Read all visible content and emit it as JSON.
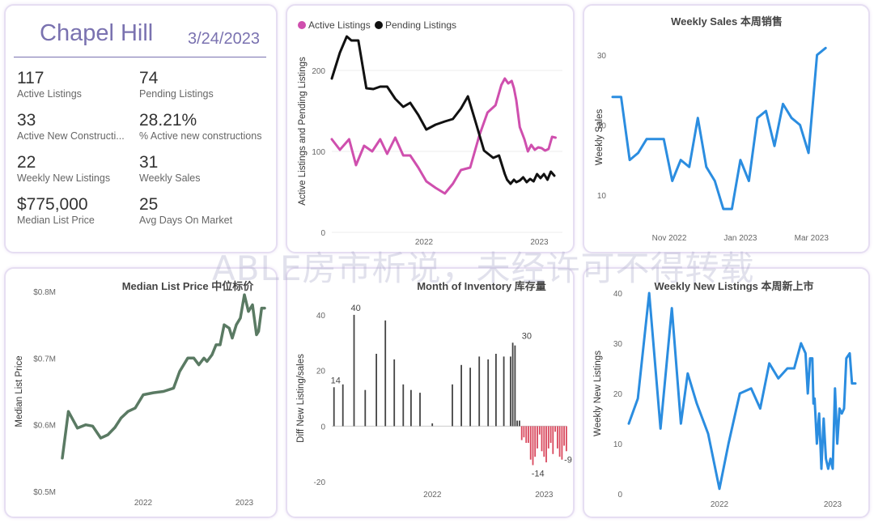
{
  "kpi": {
    "city": "Chapel Hill",
    "date": "3/24/2023",
    "items": [
      {
        "value": "117",
        "label": "Active Listings"
      },
      {
        "value": "74",
        "label": "Pending Listings"
      },
      {
        "value": "33",
        "label": "Active New Constructi..."
      },
      {
        "value": "28.21%",
        "label": "% Active new constructions"
      },
      {
        "value": "22",
        "label": "Weekly New Listings"
      },
      {
        "value": "31",
        "label": "Weekly Sales"
      },
      {
        "value": "$775,000",
        "label": "Median List Price"
      },
      {
        "value": "25",
        "label": "Avg Days On Market"
      }
    ]
  },
  "watermark": "ABLE房市析说，未经许可不得转载",
  "colors": {
    "active": "#cf4fae",
    "pending": "#111111",
    "blue": "#2b8de0",
    "green": "#5a7a63",
    "pos": "#444444",
    "neg": "#d9495e"
  },
  "chart_data": [
    {
      "id": "listings",
      "type": "line",
      "title": "",
      "legend": [
        "Active Listings",
        "Pending Listings"
      ],
      "ylabel": "Active Listings and Pending Listings",
      "ylim": [
        0,
        250
      ],
      "yticks": [
        0,
        100,
        200
      ],
      "xlim": [
        2021.2,
        2023.2
      ],
      "xticks": [
        {
          "v": 2022.0,
          "label": "2022"
        },
        {
          "v": 2023.0,
          "label": "2023"
        }
      ],
      "series": [
        {
          "name": "Active Listings",
          "x": [
            2021.2,
            2021.27,
            2021.35,
            2021.41,
            2021.48,
            2021.55,
            2021.62,
            2021.68,
            2021.75,
            2021.82,
            2021.88,
            2021.95,
            2022.02,
            2022.1,
            2022.18,
            2022.25,
            2022.32,
            2022.4,
            2022.48,
            2022.55,
            2022.62,
            2022.67,
            2022.7,
            2022.73,
            2022.76,
            2022.78,
            2022.8,
            2022.83,
            2022.87,
            2022.9,
            2022.93,
            2022.96,
            2022.99,
            2023.02,
            2023.05,
            2023.08,
            2023.11,
            2023.14
          ],
          "values": [
            115,
            102,
            115,
            83,
            107,
            100,
            115,
            97,
            117,
            95,
            95,
            80,
            63,
            55,
            48,
            60,
            77,
            80,
            120,
            148,
            157,
            182,
            190,
            184,
            187,
            178,
            163,
            130,
            115,
            100,
            108,
            102,
            105,
            104,
            101,
            103,
            118,
            117
          ]
        },
        {
          "name": "Pending Listings",
          "x": [
            2021.2,
            2021.27,
            2021.33,
            2021.37,
            2021.43,
            2021.5,
            2021.56,
            2021.62,
            2021.68,
            2021.75,
            2021.82,
            2021.88,
            2021.95,
            2022.02,
            2022.1,
            2022.18,
            2022.25,
            2022.32,
            2022.38,
            2022.45,
            2022.52,
            2022.6,
            2022.65,
            2022.7,
            2022.72,
            2022.75,
            2022.78,
            2022.8,
            2022.83,
            2022.86,
            2022.89,
            2022.92,
            2022.95,
            2022.98,
            2023.01,
            2023.04,
            2023.07,
            2023.1,
            2023.13
          ],
          "values": [
            190,
            222,
            242,
            237,
            237,
            178,
            177,
            180,
            180,
            165,
            155,
            160,
            145,
            127,
            133,
            137,
            140,
            153,
            168,
            135,
            101,
            92,
            95,
            72,
            65,
            60,
            65,
            62,
            64,
            68,
            62,
            66,
            63,
            72,
            67,
            72,
            65,
            75,
            70
          ]
        }
      ]
    },
    {
      "id": "weekly-sales",
      "type": "line",
      "title": "Weekly Sales 本周销售",
      "ylabel": "Weekly Sales",
      "ylim": [
        3.5,
        33
      ],
      "yticks": [
        10,
        20,
        30
      ],
      "xlim": [
        2022.7,
        2023.27
      ],
      "xticks": [
        {
          "v": 2022.833,
          "label": "Nov 2022"
        },
        {
          "v": 2023.0,
          "label": "Jan 2023"
        },
        {
          "v": 2023.167,
          "label": "Mar 2023"
        }
      ],
      "series": [
        {
          "name": "Weekly Sales",
          "x": [
            2022.7,
            2022.72,
            2022.74,
            2022.76,
            2022.78,
            2022.8,
            2022.82,
            2022.84,
            2022.86,
            2022.88,
            2022.9,
            2022.92,
            2022.94,
            2022.96,
            2022.98,
            2023.0,
            2023.02,
            2023.04,
            2023.06,
            2023.08,
            2023.1,
            2023.12,
            2023.14,
            2023.16,
            2023.18,
            2023.2,
            2023.22,
            2023.24,
            2023.26
          ],
          "values": [
            24,
            24,
            15,
            16,
            18,
            18,
            18,
            12,
            15,
            14,
            21,
            14,
            12,
            8,
            8,
            15,
            12,
            21,
            22,
            17,
            23,
            21,
            20,
            16,
            30,
            31,
            null,
            null,
            null
          ]
        }
      ]
    },
    {
      "id": "median-price",
      "type": "line",
      "title": "Median List Price  中位标价",
      "ylabel": "Median List Price",
      "ylim": [
        0.5,
        0.8
      ],
      "yticks": [
        {
          "v": 0.5,
          "label": "$0.5M"
        },
        {
          "v": 0.6,
          "label": "$0.6M"
        },
        {
          "v": 0.7,
          "label": "$0.7M"
        },
        {
          "v": 0.8,
          "label": "$0.8M"
        }
      ],
      "xlim": [
        2021.2,
        2023.2
      ],
      "xticks": [
        {
          "v": 2022.0,
          "label": "2022"
        },
        {
          "v": 2023.0,
          "label": "2023"
        }
      ],
      "series": [
        {
          "name": "Median List Price",
          "x": [
            2021.2,
            2021.26,
            2021.35,
            2021.43,
            2021.5,
            2021.58,
            2021.65,
            2021.72,
            2021.78,
            2021.85,
            2021.92,
            2022.0,
            2022.1,
            2022.2,
            2022.3,
            2022.36,
            2022.44,
            2022.5,
            2022.55,
            2022.6,
            2022.63,
            2022.68,
            2022.72,
            2022.76,
            2022.8,
            2022.85,
            2022.88,
            2022.92,
            2022.96,
            2023.0,
            2023.04,
            2023.08,
            2023.12,
            2023.14,
            2023.17,
            2023.2
          ],
          "values": [
            0.55,
            0.62,
            0.595,
            0.6,
            0.598,
            0.58,
            0.585,
            0.596,
            0.61,
            0.62,
            0.625,
            0.645,
            0.648,
            0.65,
            0.655,
            0.68,
            0.7,
            0.7,
            0.69,
            0.7,
            0.695,
            0.705,
            0.72,
            0.72,
            0.75,
            0.745,
            0.73,
            0.75,
            0.76,
            0.795,
            0.77,
            0.78,
            0.735,
            0.74,
            0.775,
            0.775
          ]
        }
      ]
    },
    {
      "id": "months-inventory",
      "type": "bar",
      "title": "Month of Inventory 库存量",
      "ylabel": "Diff New Listing/sales",
      "ylim": [
        -22,
        42
      ],
      "yticks": [
        -20,
        0,
        20,
        40
      ],
      "xlim": [
        2021.1,
        2023.2
      ],
      "xticks": [
        {
          "v": 2022.0,
          "label": "2022"
        },
        {
          "v": 2023.0,
          "label": "2023"
        }
      ],
      "data_labels": [
        {
          "x": 2021.12,
          "value": 14,
          "label": "14"
        },
        {
          "x": 2021.3,
          "value": 40,
          "label": "40"
        },
        {
          "x": 2022.83,
          "value": 30,
          "label": "30"
        },
        {
          "x": 2022.93,
          "value": -14,
          "label": "-14"
        },
        {
          "x": 2023.2,
          "value": -9,
          "label": "-9"
        }
      ],
      "bars": {
        "x": [
          2021.12,
          2021.2,
          2021.3,
          2021.4,
          2021.5,
          2021.58,
          2021.66,
          2021.74,
          2021.81,
          2021.89,
          2022.0,
          2022.18,
          2022.26,
          2022.34,
          2022.42,
          2022.5,
          2022.57,
          2022.64,
          2022.7,
          2022.72,
          2022.74,
          2022.76,
          2022.78,
          2022.8,
          2022.82,
          2022.84,
          2022.86,
          2022.88,
          2022.9,
          2022.92,
          2022.94,
          2022.96,
          2022.98,
          2023.0,
          2023.02,
          2023.04,
          2023.06,
          2023.08,
          2023.1,
          2023.12,
          2023.14,
          2023.16,
          2023.18,
          2023.2
        ],
        "values": [
          14,
          15,
          40,
          13,
          26,
          38,
          24,
          15,
          13,
          12,
          1,
          15,
          22,
          21,
          25,
          24,
          26,
          25,
          25,
          30,
          29,
          2,
          2,
          -5,
          -4,
          -6,
          -6,
          -12,
          -14,
          -11,
          -8,
          -3,
          -9,
          -11,
          -13,
          -8,
          -6,
          -10,
          -2,
          -8,
          -11,
          -12,
          -7,
          -9
        ]
      }
    },
    {
      "id": "weekly-new-listings",
      "type": "line",
      "title": "Weekly New Listings  本周新上市",
      "ylabel": "Weekly New Listings",
      "ylim": [
        0,
        40
      ],
      "yticks": [
        0,
        10,
        20,
        30,
        40
      ],
      "xlim": [
        2021.2,
        2023.2
      ],
      "xticks": [
        {
          "v": 2022.0,
          "label": "2022"
        },
        {
          "v": 2023.0,
          "label": "2023"
        }
      ],
      "series": [
        {
          "name": "Weekly New Listings",
          "x": [
            2021.2,
            2021.28,
            2021.38,
            2021.48,
            2021.58,
            2021.66,
            2021.72,
            2021.8,
            2021.9,
            2022.0,
            2022.08,
            2022.18,
            2022.28,
            2022.36,
            2022.44,
            2022.52,
            2022.6,
            2022.66,
            2022.72,
            2022.76,
            2022.78,
            2022.8,
            2022.82,
            2022.83,
            2022.84,
            2022.86,
            2022.88,
            2022.9,
            2022.92,
            2022.94,
            2022.96,
            2022.98,
            2023.0,
            2023.02,
            2023.04,
            2023.06,
            2023.08,
            2023.1,
            2023.12,
            2023.15,
            2023.17,
            2023.2
          ],
          "values": [
            14,
            19,
            40,
            13,
            37,
            14,
            24,
            18,
            12,
            1,
            10,
            20,
            21,
            17,
            26,
            23,
            25,
            25,
            30,
            28,
            20,
            27,
            27,
            18,
            19,
            10,
            16,
            5,
            15,
            7,
            5,
            7,
            5,
            21,
            10,
            17,
            16,
            17,
            27,
            28,
            22,
            22
          ]
        }
      ]
    }
  ]
}
